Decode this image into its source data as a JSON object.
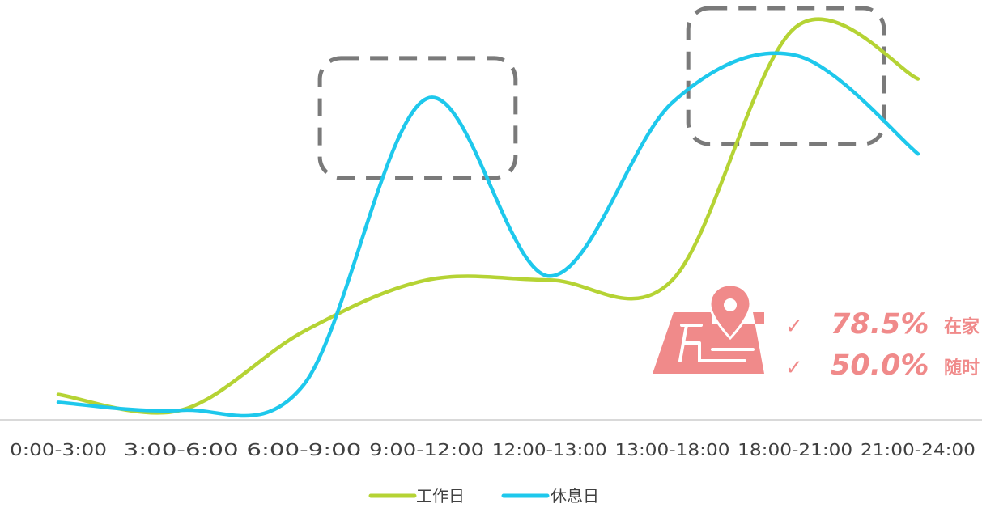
{
  "chart_data": {
    "type": "line",
    "smooth": true,
    "categories": [
      "0:00-3:00",
      "3:00-6:00",
      "6:00-9:00",
      "9:00-12:00",
      "12:00-13:00",
      "13:00-18:00",
      "18:00-21:00",
      "21:00-24:00"
    ],
    "series": [
      {
        "name": "工作日",
        "color": "#b5d334",
        "values": [
          5.0,
          1.0,
          21.0,
          34.0,
          34.0,
          34.0,
          98.0,
          85.0
        ]
      },
      {
        "name": "休息日",
        "color": "#1ec8ec",
        "values": [
          3.0,
          1.0,
          7.5,
          80.0,
          35.0,
          79.0,
          91.0,
          66.0
        ]
      }
    ],
    "ylim": [
      0,
      105
    ],
    "grid": false,
    "legend_position": "bottom",
    "highlight_boxes": [
      {
        "from_category": "9:00-12:00",
        "to_category": "12:00-13:00",
        "style": "dashed"
      },
      {
        "from_category": "18:00-21:00",
        "to_category": "21:00-24:00",
        "style": "dashed"
      }
    ],
    "annotation": {
      "icon": "map-location-icon",
      "color": "#f08a8a",
      "lines": [
        {
          "check": "✓",
          "percent": "78.5%",
          "text": "在家"
        },
        {
          "check": "✓",
          "percent": "50.0%",
          "text": "随时"
        }
      ]
    }
  }
}
